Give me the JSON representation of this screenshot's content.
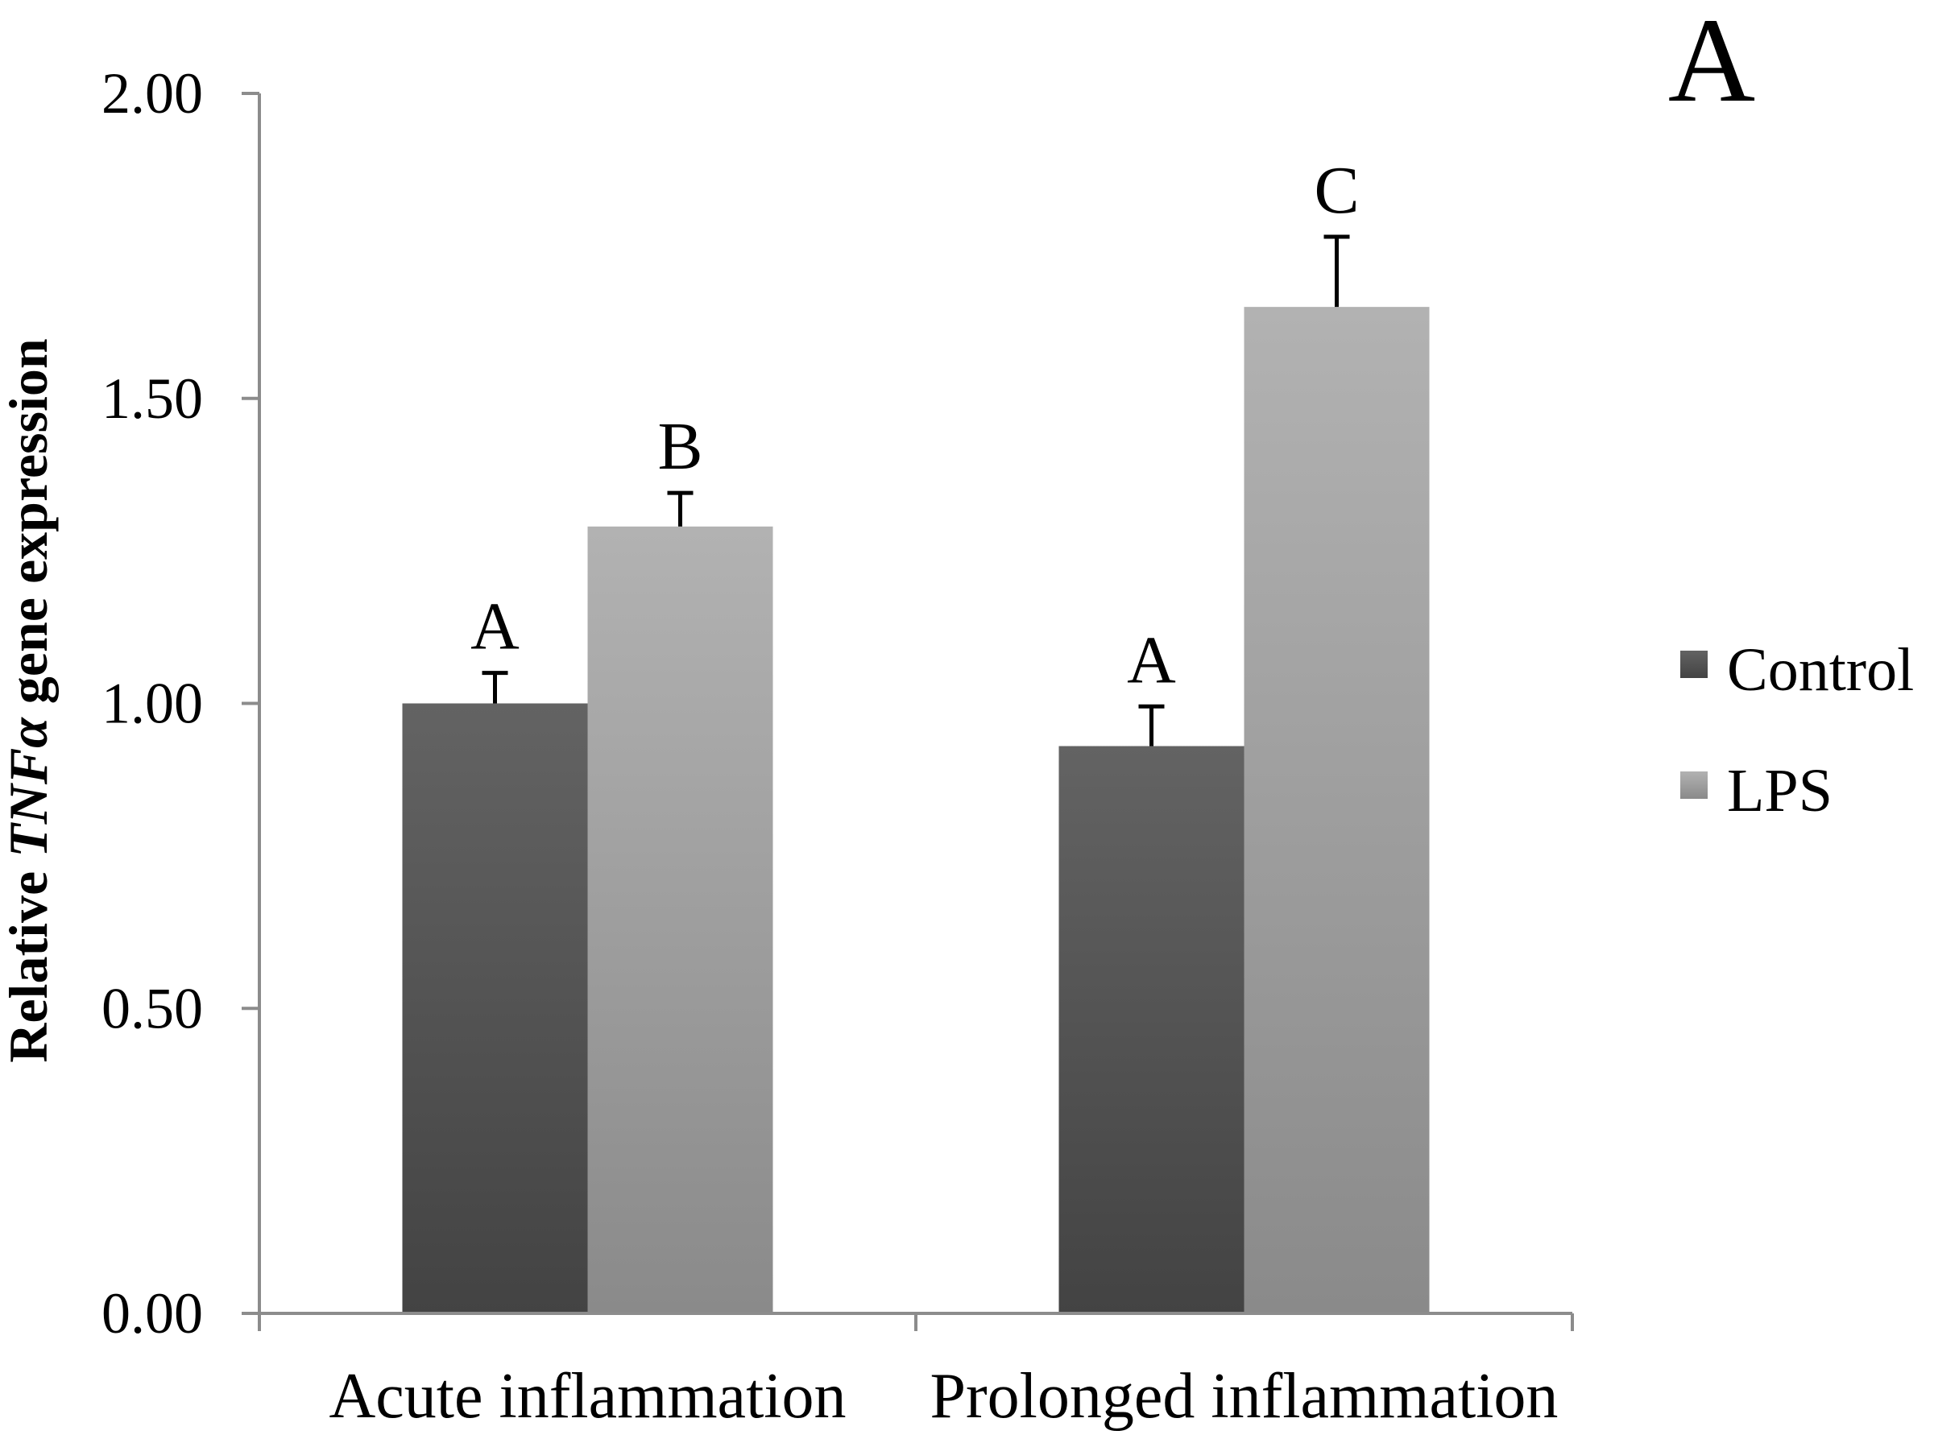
{
  "chart_data": {
    "type": "bar",
    "panel_label": "A",
    "ylabel": {
      "prefix": "Relative ",
      "gene": "TNFα",
      "suffix": " gene expression"
    },
    "xlabel": "",
    "ylim": [
      0,
      2
    ],
    "yticks": [
      {
        "value": 0,
        "label": "0.00"
      },
      {
        "value": 0.5,
        "label": "0.50"
      },
      {
        "value": 1,
        "label": "1.00"
      },
      {
        "value": 1.5,
        "label": "1.50"
      },
      {
        "value": 2,
        "label": "2.00"
      }
    ],
    "categories": [
      "Acute inflammation",
      "Prolonged inflammation"
    ],
    "series": [
      {
        "name": "Control",
        "color_top": "#636363",
        "color_bottom": "#434343",
        "values": [
          1.0,
          0.93
        ],
        "errors": [
          0.05,
          0.065
        ],
        "sig_letters": [
          "A",
          "A"
        ]
      },
      {
        "name": "LPS",
        "color_top": "#b2b2b2",
        "color_bottom": "#8a8a8a",
        "values": [
          1.29,
          1.65
        ],
        "errors": [
          0.055,
          0.115
        ],
        "sig_letters": [
          "B",
          "C"
        ]
      }
    ],
    "legend": {
      "position": "right"
    },
    "grid": false
  }
}
